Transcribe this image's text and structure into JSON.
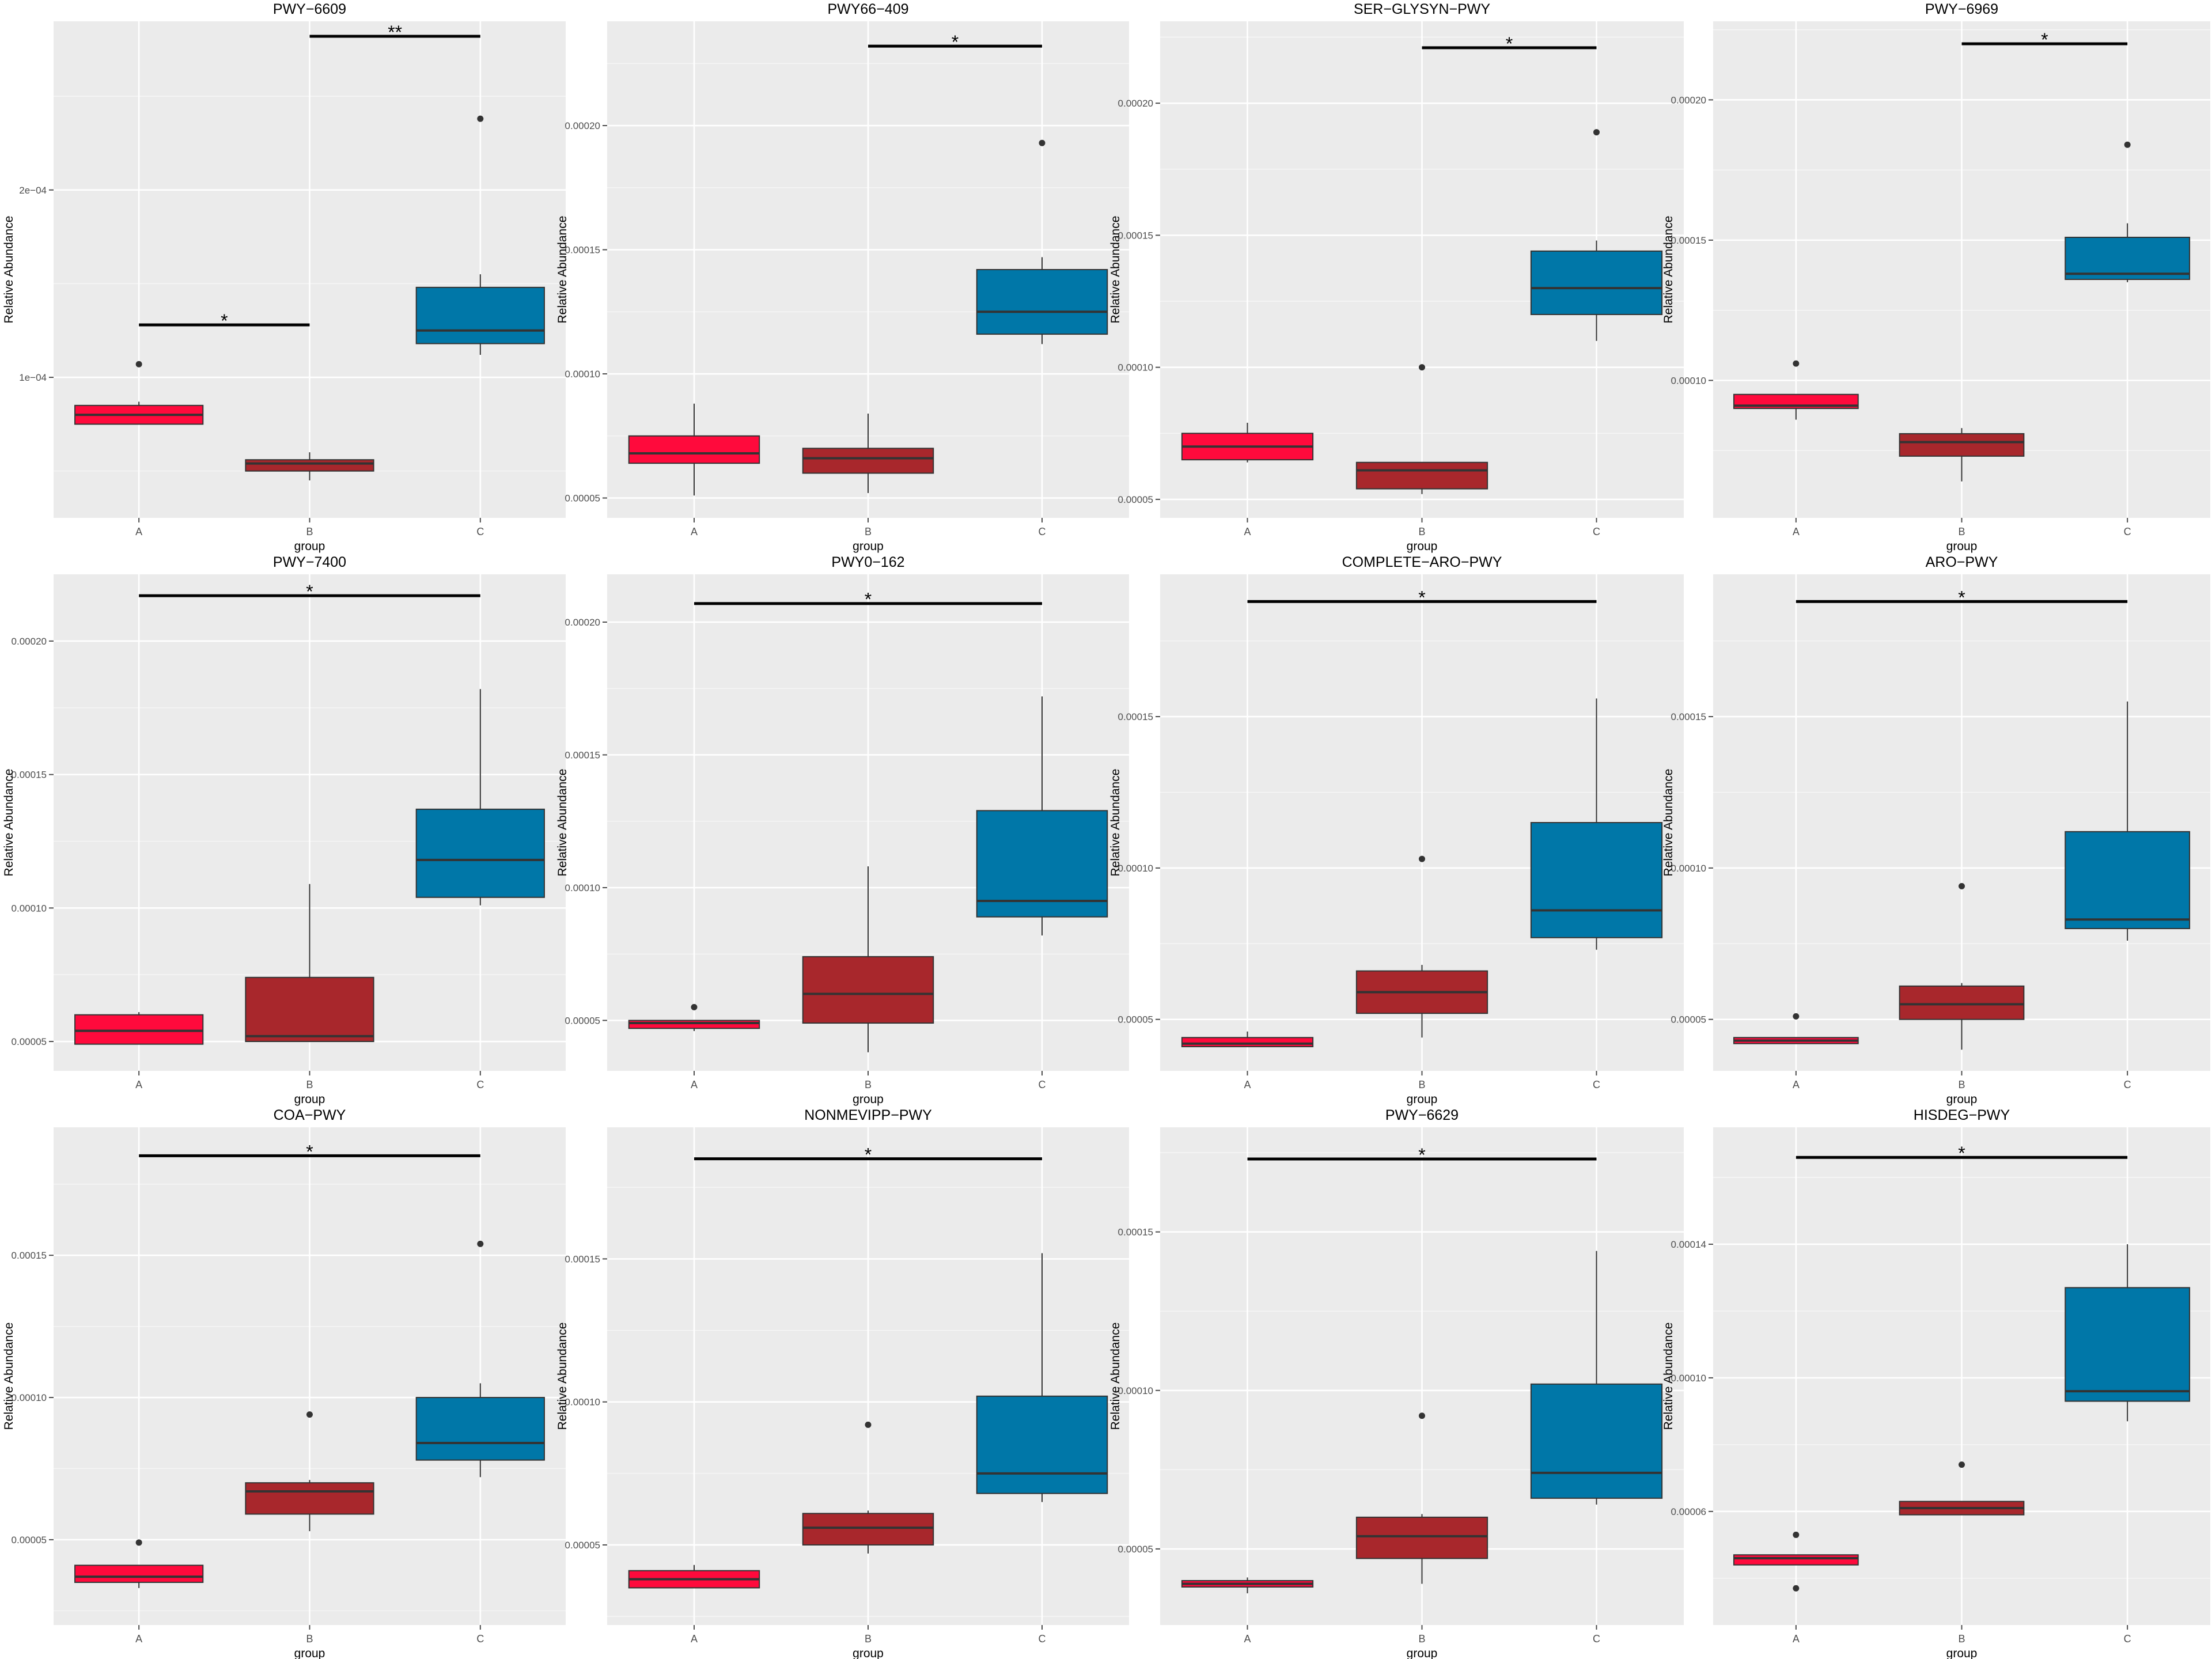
{
  "colors": {
    "panel_bg": "#EBEBEB",
    "grid": "#FFFFFF",
    "text": "#000000",
    "tick_text": "#4D4D4D",
    "box_stroke": "#333333",
    "A": "#FF0A3C",
    "B": "#A8272C",
    "C": "#0077A8"
  },
  "chart_data": [
    {
      "type": "box",
      "title": "PWY−6609",
      "xlabel": "group",
      "ylabel": "Relative Abundance",
      "categories": [
        "A",
        "B",
        "C"
      ],
      "ylim": [
        2.5e-05,
        0.00029
      ],
      "yticks": [
        {
          "value": 0.0001,
          "label": "1e−04"
        },
        {
          "value": 0.0002,
          "label": "2e−04"
        }
      ],
      "boxes": [
        {
          "group": "A",
          "min": 7.5e-05,
          "q1": 7.5e-05,
          "median": 8e-05,
          "q3": 8.5e-05,
          "max": 8.7e-05,
          "outliers": [
            0.000107
          ]
        },
        {
          "group": "B",
          "min": 4.5e-05,
          "q1": 5e-05,
          "median": 5.4e-05,
          "q3": 5.6e-05,
          "max": 6e-05,
          "outliers": []
        },
        {
          "group": "C",
          "min": 0.000112,
          "q1": 0.000118,
          "median": 0.000125,
          "q3": 0.000148,
          "max": 0.000155,
          "outliers": [
            0.000238
          ]
        }
      ],
      "significance": [
        {
          "from": "A",
          "to": "B",
          "label": "*",
          "y": 0.000128
        },
        {
          "from": "B",
          "to": "C",
          "label": "**",
          "y": 0.000282
        }
      ]
    },
    {
      "type": "box",
      "title": "PWY66−409",
      "xlabel": "group",
      "ylabel": "Relative Abundance",
      "categories": [
        "A",
        "B",
        "C"
      ],
      "ylim": [
        4.2e-05,
        0.000242
      ],
      "yticks": [
        {
          "value": 5e-05,
          "label": "0.00005"
        },
        {
          "value": 0.0001,
          "label": "0.00010"
        },
        {
          "value": 0.00015,
          "label": "0.00015"
        },
        {
          "value": 0.0002,
          "label": "0.00020"
        }
      ],
      "boxes": [
        {
          "group": "A",
          "min": 5.1e-05,
          "q1": 6.4e-05,
          "median": 6.8e-05,
          "q3": 7.5e-05,
          "max": 8.8e-05,
          "outliers": []
        },
        {
          "group": "B",
          "min": 5.2e-05,
          "q1": 6e-05,
          "median": 6.6e-05,
          "q3": 7e-05,
          "max": 8.4e-05,
          "outliers": []
        },
        {
          "group": "C",
          "min": 0.000112,
          "q1": 0.000116,
          "median": 0.000125,
          "q3": 0.000142,
          "max": 0.000147,
          "outliers": [
            0.000193
          ]
        }
      ],
      "significance": [
        {
          "from": "B",
          "to": "C",
          "label": "*",
          "y": 0.000232
        }
      ]
    },
    {
      "type": "box",
      "title": "SER−GLYSYN−PWY",
      "xlabel": "group",
      "ylabel": "Relative Abundance",
      "categories": [
        "A",
        "B",
        "C"
      ],
      "ylim": [
        4.3e-05,
        0.000231
      ],
      "yticks": [
        {
          "value": 5e-05,
          "label": "0.00005"
        },
        {
          "value": 0.0001,
          "label": "0.00010"
        },
        {
          "value": 0.00015,
          "label": "0.00015"
        },
        {
          "value": 0.0002,
          "label": "0.00020"
        }
      ],
      "boxes": [
        {
          "group": "A",
          "min": 6.4e-05,
          "q1": 6.5e-05,
          "median": 7e-05,
          "q3": 7.5e-05,
          "max": 7.9e-05,
          "outliers": []
        },
        {
          "group": "B",
          "min": 5.2e-05,
          "q1": 5.4e-05,
          "median": 6.1e-05,
          "q3": 6.4e-05,
          "max": 6.4e-05,
          "outliers": [
            0.0001
          ]
        },
        {
          "group": "C",
          "min": 0.00011,
          "q1": 0.00012,
          "median": 0.00013,
          "q3": 0.000144,
          "max": 0.000148,
          "outliers": [
            0.000189
          ]
        }
      ],
      "significance": [
        {
          "from": "B",
          "to": "C",
          "label": "*",
          "y": 0.000221
        }
      ]
    },
    {
      "type": "box",
      "title": "PWY−6969",
      "xlabel": "group",
      "ylabel": "Relative Abundance",
      "categories": [
        "A",
        "B",
        "C"
      ],
      "ylim": [
        5.1e-05,
        0.000228
      ],
      "yticks": [
        {
          "value": 0.0001,
          "label": "0.00010"
        },
        {
          "value": 0.00015,
          "label": "0.00015"
        },
        {
          "value": 0.0002,
          "label": "0.00020"
        }
      ],
      "boxes": [
        {
          "group": "A",
          "min": 8.6e-05,
          "q1": 9e-05,
          "median": 9.1e-05,
          "q3": 9.5e-05,
          "max": 9.5e-05,
          "outliers": [
            0.000106
          ]
        },
        {
          "group": "B",
          "min": 6.4e-05,
          "q1": 7.3e-05,
          "median": 7.8e-05,
          "q3": 8.1e-05,
          "max": 8.3e-05,
          "outliers": []
        },
        {
          "group": "C",
          "min": 0.000135,
          "q1": 0.000136,
          "median": 0.000138,
          "q3": 0.000151,
          "max": 0.000156,
          "outliers": [
            0.000184
          ]
        }
      ],
      "significance": [
        {
          "from": "B",
          "to": "C",
          "label": "*",
          "y": 0.00022
        }
      ]
    },
    {
      "type": "box",
      "title": "PWY−7400",
      "xlabel": "group",
      "ylabel": "Relative Abundance",
      "categories": [
        "A",
        "B",
        "C"
      ],
      "ylim": [
        3.9e-05,
        0.000225
      ],
      "yticks": [
        {
          "value": 5e-05,
          "label": "0.00005"
        },
        {
          "value": 0.0001,
          "label": "0.00010"
        },
        {
          "value": 0.00015,
          "label": "0.00015"
        },
        {
          "value": 0.0002,
          "label": "0.00020"
        }
      ],
      "boxes": [
        {
          "group": "A",
          "min": 4.9e-05,
          "q1": 4.9e-05,
          "median": 5.4e-05,
          "q3": 6e-05,
          "max": 6.1e-05,
          "outliers": []
        },
        {
          "group": "B",
          "min": 5e-05,
          "q1": 5e-05,
          "median": 5.2e-05,
          "q3": 7.4e-05,
          "max": 0.000109,
          "outliers": []
        },
        {
          "group": "C",
          "min": 0.000101,
          "q1": 0.000104,
          "median": 0.000118,
          "q3": 0.000137,
          "max": 0.000182,
          "outliers": []
        }
      ],
      "significance": [
        {
          "from": "A",
          "to": "C",
          "label": "*",
          "y": 0.000217
        }
      ]
    },
    {
      "type": "box",
      "title": "PWY0−162",
      "xlabel": "group",
      "ylabel": "Relative Abundance",
      "categories": [
        "A",
        "B",
        "C"
      ],
      "ylim": [
        3.1e-05,
        0.000218
      ],
      "yticks": [
        {
          "value": 5e-05,
          "label": "0.00005"
        },
        {
          "value": 0.0001,
          "label": "0.00010"
        },
        {
          "value": 0.00015,
          "label": "0.00015"
        },
        {
          "value": 0.0002,
          "label": "0.00020"
        }
      ],
      "boxes": [
        {
          "group": "A",
          "min": 4.6e-05,
          "q1": 4.7e-05,
          "median": 4.9e-05,
          "q3": 5e-05,
          "max": 5e-05,
          "outliers": [
            5.5e-05
          ]
        },
        {
          "group": "B",
          "min": 3.8e-05,
          "q1": 4.9e-05,
          "median": 6e-05,
          "q3": 7.4e-05,
          "max": 0.000108,
          "outliers": []
        },
        {
          "group": "C",
          "min": 8.2e-05,
          "q1": 8.9e-05,
          "median": 9.5e-05,
          "q3": 0.000129,
          "max": 0.000172,
          "outliers": []
        }
      ],
      "significance": [
        {
          "from": "A",
          "to": "C",
          "label": "*",
          "y": 0.000207
        }
      ]
    },
    {
      "type": "box",
      "title": "COMPLETE−ARO−PWY",
      "xlabel": "group",
      "ylabel": "Relative Abundance",
      "categories": [
        "A",
        "B",
        "C"
      ],
      "ylim": [
        3.3e-05,
        0.000197
      ],
      "yticks": [
        {
          "value": 5e-05,
          "label": "0.00005"
        },
        {
          "value": 0.0001,
          "label": "0.00010"
        },
        {
          "value": 0.00015,
          "label": "0.00015"
        }
      ],
      "boxes": [
        {
          "group": "A",
          "min": 4.1e-05,
          "q1": 4.1e-05,
          "median": 4.2e-05,
          "q3": 4.4e-05,
          "max": 4.6e-05,
          "outliers": []
        },
        {
          "group": "B",
          "min": 4.4e-05,
          "q1": 5.2e-05,
          "median": 5.9e-05,
          "q3": 6.6e-05,
          "max": 6.8e-05,
          "outliers": [
            0.000103
          ]
        },
        {
          "group": "C",
          "min": 7.3e-05,
          "q1": 7.7e-05,
          "median": 8.6e-05,
          "q3": 0.000115,
          "max": 0.000156,
          "outliers": []
        }
      ],
      "significance": [
        {
          "from": "A",
          "to": "C",
          "label": "*",
          "y": 0.000188
        }
      ]
    },
    {
      "type": "box",
      "title": "ARO−PWY",
      "xlabel": "group",
      "ylabel": "Relative Abundance",
      "categories": [
        "A",
        "B",
        "C"
      ],
      "ylim": [
        3.3e-05,
        0.000197
      ],
      "yticks": [
        {
          "value": 5e-05,
          "label": "0.00005"
        },
        {
          "value": 0.0001,
          "label": "0.00010"
        },
        {
          "value": 0.00015,
          "label": "0.00015"
        }
      ],
      "boxes": [
        {
          "group": "A",
          "min": 4.2e-05,
          "q1": 4.2e-05,
          "median": 4.3e-05,
          "q3": 4.4e-05,
          "max": 4.4e-05,
          "outliers": [
            5.1e-05
          ]
        },
        {
          "group": "B",
          "min": 4e-05,
          "q1": 5e-05,
          "median": 5.5e-05,
          "q3": 6.1e-05,
          "max": 6.2e-05,
          "outliers": [
            9.4e-05
          ]
        },
        {
          "group": "C",
          "min": 7.6e-05,
          "q1": 8e-05,
          "median": 8.3e-05,
          "q3": 0.000112,
          "max": 0.000155,
          "outliers": []
        }
      ],
      "significance": [
        {
          "from": "A",
          "to": "C",
          "label": "*",
          "y": 0.000188
        }
      ]
    },
    {
      "type": "box",
      "title": "COA−PWY",
      "xlabel": "group",
      "ylabel": "Relative Abundance",
      "categories": [
        "A",
        "B",
        "C"
      ],
      "ylim": [
        2e-05,
        0.000195
      ],
      "yticks": [
        {
          "value": 5e-05,
          "label": "0.00005"
        },
        {
          "value": 0.0001,
          "label": "0.00010"
        },
        {
          "value": 0.00015,
          "label": "0.00015"
        }
      ],
      "boxes": [
        {
          "group": "A",
          "min": 3.3e-05,
          "q1": 3.5e-05,
          "median": 3.7e-05,
          "q3": 4.1e-05,
          "max": 4.1e-05,
          "outliers": [
            4.9e-05
          ]
        },
        {
          "group": "B",
          "min": 5.3e-05,
          "q1": 5.9e-05,
          "median": 6.7e-05,
          "q3": 7e-05,
          "max": 7.1e-05,
          "outliers": [
            9.4e-05
          ]
        },
        {
          "group": "C",
          "min": 7.2e-05,
          "q1": 7.8e-05,
          "median": 8.4e-05,
          "q3": 0.0001,
          "max": 0.000105,
          "outliers": [
            0.000154
          ]
        }
      ],
      "significance": [
        {
          "from": "A",
          "to": "C",
          "label": "*",
          "y": 0.000185
        }
      ]
    },
    {
      "type": "box",
      "title": "NONMEVIPP−PWY",
      "xlabel": "group",
      "ylabel": "Relative Abundance",
      "categories": [
        "A",
        "B",
        "C"
      ],
      "ylim": [
        2.2e-05,
        0.000196
      ],
      "yticks": [
        {
          "value": 5e-05,
          "label": "0.00005"
        },
        {
          "value": 0.0001,
          "label": "0.00010"
        },
        {
          "value": 0.00015,
          "label": "0.00015"
        }
      ],
      "boxes": [
        {
          "group": "A",
          "min": 3.5e-05,
          "q1": 3.5e-05,
          "median": 3.8e-05,
          "q3": 4.1e-05,
          "max": 4.3e-05,
          "outliers": []
        },
        {
          "group": "B",
          "min": 4.7e-05,
          "q1": 5e-05,
          "median": 5.6e-05,
          "q3": 6.1e-05,
          "max": 6.2e-05,
          "outliers": [
            9.2e-05
          ]
        },
        {
          "group": "C",
          "min": 6.5e-05,
          "q1": 6.8e-05,
          "median": 7.5e-05,
          "q3": 0.000102,
          "max": 0.000152,
          "outliers": []
        }
      ],
      "significance": [
        {
          "from": "A",
          "to": "C",
          "label": "*",
          "y": 0.000185
        }
      ]
    },
    {
      "type": "box",
      "title": "PWY−6629",
      "xlabel": "group",
      "ylabel": "Relative Abundance",
      "categories": [
        "A",
        "B",
        "C"
      ],
      "ylim": [
        2.6e-05,
        0.000183
      ],
      "yticks": [
        {
          "value": 5e-05,
          "label": "0.00005"
        },
        {
          "value": 0.0001,
          "label": "0.00010"
        },
        {
          "value": 0.00015,
          "label": "0.00015"
        }
      ],
      "boxes": [
        {
          "group": "A",
          "min": 3.6e-05,
          "q1": 3.8e-05,
          "median": 3.9e-05,
          "q3": 4e-05,
          "max": 4.1e-05,
          "outliers": []
        },
        {
          "group": "B",
          "min": 3.9e-05,
          "q1": 4.7e-05,
          "median": 5.4e-05,
          "q3": 6e-05,
          "max": 6.1e-05,
          "outliers": [
            9.2e-05
          ]
        },
        {
          "group": "C",
          "min": 6.4e-05,
          "q1": 6.6e-05,
          "median": 7.4e-05,
          "q3": 0.000102,
          "max": 0.000144,
          "outliers": []
        }
      ],
      "significance": [
        {
          "from": "A",
          "to": "C",
          "label": "*",
          "y": 0.000173
        }
      ]
    },
    {
      "type": "box",
      "title": "HISDEG−PWY",
      "xlabel": "group",
      "ylabel": "Relative Abundance",
      "categories": [
        "A",
        "B",
        "C"
      ],
      "ylim": [
        2.6e-05,
        0.000175
      ],
      "yticks": [
        {
          "value": 6e-05,
          "label": "0.00006"
        },
        {
          "value": 0.0001,
          "label": "0.00010"
        },
        {
          "value": 0.00014,
          "label": "0.00014"
        }
      ],
      "boxes": [
        {
          "group": "A",
          "min": 4.4e-05,
          "q1": 4.4e-05,
          "median": 4.6e-05,
          "q3": 4.7e-05,
          "max": 4.7e-05,
          "outliers": [
            5.3e-05,
            3.7e-05
          ]
        },
        {
          "group": "B",
          "min": 5.9e-05,
          "q1": 5.9e-05,
          "median": 6.1e-05,
          "q3": 6.3e-05,
          "max": 6.3e-05,
          "outliers": [
            7.4e-05
          ]
        },
        {
          "group": "C",
          "min": 8.7e-05,
          "q1": 9.3e-05,
          "median": 9.6e-05,
          "q3": 0.000127,
          "max": 0.00014,
          "outliers": []
        }
      ],
      "significance": [
        {
          "from": "A",
          "to": "C",
          "label": "*",
          "y": 0.000166
        }
      ]
    }
  ]
}
